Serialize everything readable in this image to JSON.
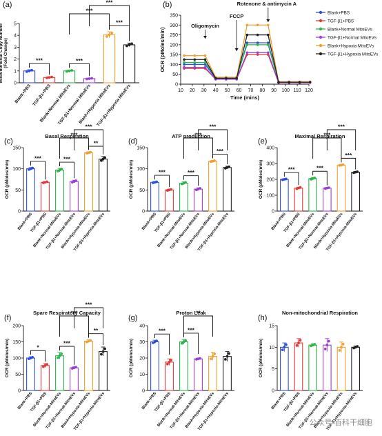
{
  "figure": {
    "watermark": "公众号·百科干细胞"
  },
  "colors": {
    "blank_pbs": "#2f4fd8",
    "tgf_pbs": "#e03a3a",
    "blank_normal": "#2cb34a",
    "tgf_normal": "#9b3fd6",
    "blank_hypoxia": "#f0a030",
    "tgf_hypoxia": "#222222"
  },
  "chart_data": [
    {
      "panel": "(a)",
      "type": "bar",
      "title": "",
      "ylabel": "Mitochondrial Copy Number (Fold Change)",
      "ylim": [
        0,
        5
      ],
      "yticks": [
        0,
        1,
        2,
        3,
        4,
        5
      ],
      "categories": [
        "Blank+PBS",
        "TGF-β1+PBS",
        "Blank+Normal MitoEVs",
        "TGF-β1+Normal MitoEVs",
        "Blank+Hypoxia MitoEVs",
        "TGF-β1+Hypoxia MitoEVs"
      ],
      "values": [
        1.0,
        0.45,
        1.0,
        0.35,
        4.05,
        3.2
      ],
      "error": [
        0.1,
        0.06,
        0.08,
        0.05,
        0.25,
        0.15
      ],
      "significance": [
        {
          "from": 0,
          "to": 1,
          "label": "***",
          "level": 1
        },
        {
          "from": 2,
          "to": 3,
          "label": "***",
          "level": 1
        },
        {
          "from": 4,
          "to": 5,
          "label": "***",
          "level": 1
        },
        {
          "from": 2,
          "to": 4,
          "label": "***",
          "level": 2
        },
        {
          "from": 3,
          "to": 5,
          "label": "***",
          "level": 3
        }
      ]
    },
    {
      "panel": "(b)",
      "type": "line",
      "title": "",
      "xlabel": "Time (mins)",
      "ylabel": "OCR (pMoles/min)",
      "xlim": [
        10,
        120
      ],
      "ylim": [
        0,
        350
      ],
      "xticks": [
        10,
        20,
        30,
        40,
        50,
        60,
        70,
        80,
        90,
        100,
        110,
        120
      ],
      "yticks": [
        0,
        50,
        100,
        150,
        200,
        250,
        300,
        350
      ],
      "x": [
        13,
        22,
        31,
        40,
        49,
        58,
        67,
        76,
        85,
        94,
        103,
        112,
        121
      ],
      "annotations": [
        {
          "text": "Oligomycin",
          "x": 31
        },
        {
          "text": "FCCP",
          "x": 58
        },
        {
          "text": "Rotenone & antimycin A",
          "x": 85
        }
      ],
      "series": [
        {
          "name": "Blank+PBS",
          "values": [
            100,
            100,
            100,
            30,
            30,
            30,
            210,
            210,
            210,
            10,
            10,
            10,
            10
          ]
        },
        {
          "name": "TGF-β1+PBS",
          "values": [
            80,
            80,
            80,
            25,
            25,
            25,
            150,
            150,
            150,
            8,
            8,
            8,
            8
          ]
        },
        {
          "name": "Blank+Normal MitoEVs",
          "values": [
            110,
            110,
            110,
            35,
            35,
            35,
            200,
            200,
            200,
            10,
            10,
            10,
            10
          ]
        },
        {
          "name": "TGF-β1+Normal MitoEVs",
          "values": [
            85,
            85,
            85,
            25,
            25,
            25,
            160,
            160,
            160,
            8,
            8,
            8,
            8
          ]
        },
        {
          "name": "Blank+Hypoxia MitoEVs",
          "values": [
            145,
            145,
            145,
            35,
            35,
            35,
            300,
            300,
            300,
            12,
            12,
            12,
            12
          ]
        },
        {
          "name": "TGF-β1+Hypoxia MitoEVs",
          "values": [
            125,
            125,
            125,
            30,
            30,
            30,
            250,
            250,
            250,
            10,
            10,
            10,
            10
          ]
        }
      ]
    },
    {
      "panel": "(c)",
      "type": "bar",
      "title": "Basal Respiration",
      "ylabel": "OCR (pMoles/min)",
      "ylim": [
        0,
        150
      ],
      "yticks": [
        0,
        50,
        100,
        150
      ],
      "categories": [
        "Blank+PBS",
        "TGF-β1+PBS",
        "Blank+Normal-MitoEVs",
        "TGF-β1+Normal-MitoEVs",
        "Blank+Hypoxia-MitoEVs",
        "TGF-β1+Hypoxia-MitoEVs"
      ],
      "values": [
        100,
        68,
        97,
        70,
        138,
        123
      ],
      "error": [
        3,
        2,
        4,
        3,
        2,
        6
      ],
      "significance": [
        {
          "from": 0,
          "to": 1,
          "label": "***",
          "level": 1
        },
        {
          "from": 2,
          "to": 3,
          "label": "***",
          "level": 1
        },
        {
          "from": 4,
          "to": 5,
          "label": "**",
          "level": 1
        },
        {
          "from": 2,
          "to": 4,
          "label": "***",
          "level": 2
        },
        {
          "from": 3,
          "to": 5,
          "label": "***",
          "level": 3
        }
      ]
    },
    {
      "panel": "(d)",
      "type": "bar",
      "title": "ATP production",
      "ylabel": "OCR (pMoles/min)",
      "ylim": [
        0,
        150
      ],
      "yticks": [
        0,
        50,
        100,
        150
      ],
      "categories": [
        "Blank+PBS",
        "TGF-β1+PBS",
        "Blank+Normal-MitoEVs",
        "TGF-β1+Normal-MitoEVs",
        "Blank+Hypoxia-MitoEVs",
        "TGF-β1+Hypoxia-MitoEVs"
      ],
      "values": [
        68,
        50,
        66,
        52,
        118,
        103
      ],
      "error": [
        2,
        2,
        3,
        3,
        2,
        3
      ],
      "significance": [
        {
          "from": 0,
          "to": 1,
          "label": "***",
          "level": 1
        },
        {
          "from": 2,
          "to": 3,
          "label": "***",
          "level": 1
        },
        {
          "from": 4,
          "to": 5,
          "label": "***",
          "level": 1
        },
        {
          "from": 2,
          "to": 4,
          "label": "***",
          "level": 2
        },
        {
          "from": 3,
          "to": 5,
          "label": "***",
          "level": 3
        }
      ]
    },
    {
      "panel": "(e)",
      "type": "bar",
      "title": "Maximal Respiration",
      "ylabel": "OCR (pMoles/min)",
      "ylim": [
        0,
        400
      ],
      "yticks": [
        0,
        100,
        200,
        300,
        400
      ],
      "categories": [
        "Blank+PBS",
        "TGF-β1+PBS",
        "Blank+Normal-MitoEVs",
        "TGF-β1+Normal-MitoEVs",
        "Blank+Hypoxia-MitoEVs",
        "TGF-β1+Hypoxia-MitoEVs"
      ],
      "values": [
        200,
        145,
        205,
        145,
        290,
        245
      ],
      "error": [
        4,
        6,
        7,
        4,
        4,
        5
      ],
      "significance": [
        {
          "from": 0,
          "to": 1,
          "label": "***",
          "level": 1
        },
        {
          "from": 2,
          "to": 3,
          "label": "***",
          "level": 1
        },
        {
          "from": 4,
          "to": 5,
          "label": "***",
          "level": 1
        },
        {
          "from": 2,
          "to": 4,
          "label": "***",
          "level": 2
        },
        {
          "from": 3,
          "to": 5,
          "label": "***",
          "level": 3
        }
      ]
    },
    {
      "panel": "(f)",
      "type": "bar",
      "title": "Spare Respiratory Capacity",
      "ylabel": "OCR (pMoles/min)",
      "ylim": [
        0,
        200
      ],
      "yticks": [
        0,
        50,
        100,
        150,
        200
      ],
      "categories": [
        "Blank+PBS",
        "TGF-β1+PBS",
        "Blank+Normal-MitoEVs",
        "TGF-β1+Normal-MitoEVs",
        "Blank+Hypoxia-MitoEVs",
        "TGF-β1+Hypoxia-MitoEVs"
      ],
      "values": [
        100,
        77,
        107,
        70,
        152,
        120
      ],
      "error": [
        4,
        6,
        10,
        3,
        4,
        14
      ],
      "significance": [
        {
          "from": 0,
          "to": 1,
          "label": "*",
          "level": 1
        },
        {
          "from": 2,
          "to": 3,
          "label": "***",
          "level": 1
        },
        {
          "from": 4,
          "to": 5,
          "label": "**",
          "level": 1
        },
        {
          "from": 2,
          "to": 4,
          "label": "***",
          "level": 2
        },
        {
          "from": 3,
          "to": 5,
          "label": "***",
          "level": 3
        }
      ]
    },
    {
      "panel": "(g)",
      "type": "bar",
      "title": "Proton Leak",
      "ylabel": "OCR (pMoles/min)",
      "ylim": [
        0,
        40
      ],
      "yticks": [
        0,
        10,
        20,
        30,
        40
      ],
      "categories": [
        "Blank+PBS",
        "TGF-β1+PBS",
        "Blank+Normal-MitoEVs",
        "TGF-β1+Normal-MitoEVs",
        "Blank+Hypoxia-MitoEVs",
        "TGF-β1+Hypoxia-MitoEVs"
      ],
      "values": [
        30,
        17.5,
        30,
        19.5,
        21,
        21
      ],
      "error": [
        1,
        2,
        1.5,
        0.5,
        2.5,
        3
      ],
      "significance": [
        {
          "from": 0,
          "to": 1,
          "label": "***",
          "level": 1
        },
        {
          "from": 2,
          "to": 3,
          "label": "***",
          "level": 1
        },
        {
          "from": 2,
          "to": 4,
          "label": "**",
          "level": 2
        }
      ]
    },
    {
      "panel": "(h)",
      "type": "bar",
      "title": "Non-mitochondrial Respiration",
      "ylabel": "OCR (pMoles/min)",
      "ylim": [
        0,
        15
      ],
      "yticks": [
        0,
        5,
        10,
        15
      ],
      "categories": [
        "Blank+PBS",
        "TGF-β1+PBS",
        "Blank+Normal-MitoEVs",
        "TGF-β1+Normal-MitoEVs",
        "Blank+Hypoxia-MitoEVs",
        "TGF-β1+Hypoxia-MitoEVs"
      ],
      "values": [
        10,
        11,
        10.5,
        10.5,
        10,
        10
      ],
      "error": [
        1,
        1,
        0.3,
        1.5,
        1.2,
        0.3
      ],
      "significance": []
    }
  ]
}
